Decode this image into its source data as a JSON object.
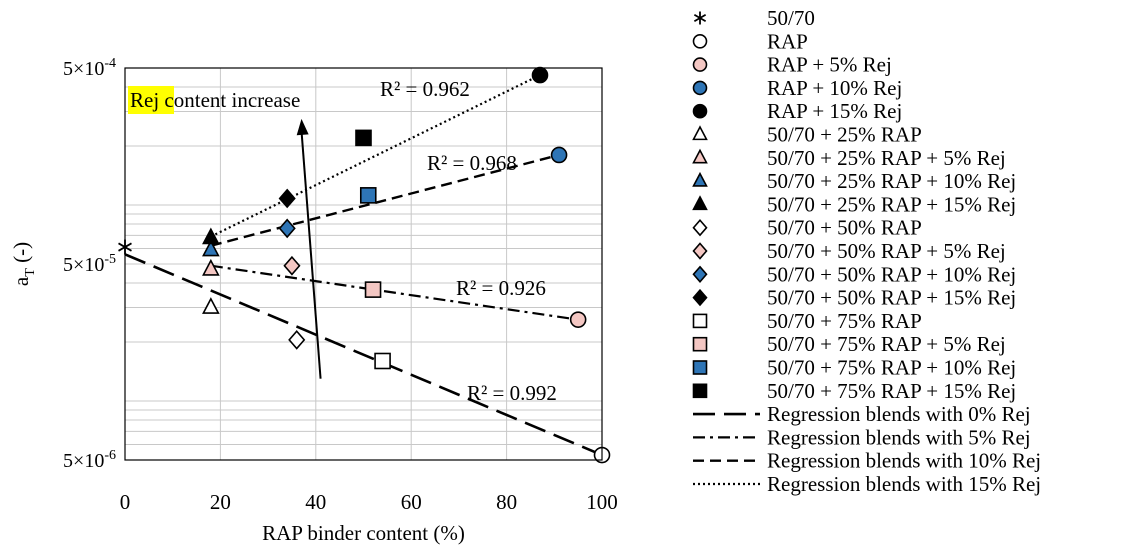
{
  "chart_data": {
    "type": "scatter",
    "title": "",
    "xlabel": "RAP binder content (%)",
    "ylabel_main": "a",
    "ylabel_sub": "T",
    "ylabel_suffix": " (-)",
    "x_range": [
      0,
      100
    ],
    "y_range": [
      5e-06,
      0.0005
    ],
    "y_scale": "log",
    "grid": true,
    "legend_position": "right",
    "x_ticks": [
      {
        "value": 0,
        "label": "0"
      },
      {
        "value": 20,
        "label": "20"
      },
      {
        "value": 40,
        "label": "40"
      },
      {
        "value": 60,
        "label": "60"
      },
      {
        "value": 80,
        "label": "80"
      },
      {
        "value": 100,
        "label": "100"
      }
    ],
    "y_ticks": [
      {
        "value": 5e-06,
        "mantissa": "5×10",
        "exponent": "-6"
      },
      {
        "value": 5e-05,
        "mantissa": "5×10",
        "exponent": "-5"
      },
      {
        "value": 0.0005,
        "mantissa": "5×10",
        "exponent": "-4"
      }
    ],
    "series": [
      {
        "name": "50/70",
        "marker": "asterisk",
        "fill": "none",
        "points": [
          [
            0,
            6.1e-05
          ]
        ]
      },
      {
        "name": "RAP",
        "marker": "circle",
        "fill": "#ffffff",
        "points": [
          [
            100,
            5.3e-06
          ]
        ]
      },
      {
        "name": "RAP + 5% Rej",
        "marker": "circle",
        "fill": "#f4c7c3",
        "points": [
          [
            95,
            2.6e-05
          ]
        ]
      },
      {
        "name": "RAP + 10% Rej",
        "marker": "circle",
        "fill": "#2e75b6",
        "points": [
          [
            91,
            0.00018
          ]
        ]
      },
      {
        "name": "RAP + 15% Rej",
        "marker": "circle",
        "fill": "#000000",
        "points": [
          [
            87,
            0.00046
          ]
        ]
      },
      {
        "name": "50/70 + 25% RAP",
        "marker": "triangle",
        "fill": "#ffffff",
        "points": [
          [
            18,
            3e-05
          ]
        ]
      },
      {
        "name": "50/70 + 25% RAP + 5% Rej",
        "marker": "triangle",
        "fill": "#f4c7c3",
        "points": [
          [
            18,
            4.7e-05
          ]
        ]
      },
      {
        "name": "50/70 + 25% RAP + 10% Rej",
        "marker": "triangle",
        "fill": "#2e75b6",
        "points": [
          [
            18,
            5.9e-05
          ]
        ]
      },
      {
        "name": "50/70 + 25% RAP + 15% Rej",
        "marker": "triangle",
        "fill": "#000000",
        "points": [
          [
            18,
            6.8e-05
          ]
        ]
      },
      {
        "name": "50/70 + 50% RAP",
        "marker": "diamond",
        "fill": "#ffffff",
        "points": [
          [
            36,
            2.05e-05
          ]
        ]
      },
      {
        "name": "50/70 + 50% RAP + 5% Rej",
        "marker": "diamond",
        "fill": "#f4c7c3",
        "points": [
          [
            35,
            4.9e-05
          ]
        ]
      },
      {
        "name": "50/70 + 50% RAP + 10% Rej",
        "marker": "diamond",
        "fill": "#2e75b6",
        "points": [
          [
            34,
            7.6e-05
          ]
        ]
      },
      {
        "name": "50/70 + 50% RAP + 15% Rej",
        "marker": "diamond",
        "fill": "#000000",
        "points": [
          [
            34,
            0.000108
          ]
        ]
      },
      {
        "name": "50/70 + 75% RAP",
        "marker": "square",
        "fill": "#ffffff",
        "points": [
          [
            54,
            1.6e-05
          ]
        ]
      },
      {
        "name": "50/70 + 75% RAP + 5% Rej",
        "marker": "square",
        "fill": "#f4c7c3",
        "points": [
          [
            52,
            3.7e-05
          ]
        ]
      },
      {
        "name": "50/70 + 75% RAP + 10% Rej",
        "marker": "square",
        "fill": "#2e75b6",
        "points": [
          [
            51,
            0.000112
          ]
        ]
      },
      {
        "name": "50/70 + 75% RAP + 15% Rej",
        "marker": "square",
        "fill": "#000000",
        "points": [
          [
            50,
            0.00022
          ]
        ]
      }
    ],
    "regressions": [
      {
        "name": "Regression blends with 0% Rej",
        "style": "longdash",
        "start": [
          0,
          5.6e-05
        ],
        "end": [
          100,
          5.3e-06
        ],
        "r2": "R² = 0.992"
      },
      {
        "name": "Regression blends with 5% Rej",
        "style": "dashdot",
        "start": [
          18,
          4.9e-05
        ],
        "end": [
          95,
          2.6e-05
        ],
        "r2": "R² = 0.926"
      },
      {
        "name": "Regression blends with 10% Rej",
        "style": "dash",
        "start": [
          18,
          6.2e-05
        ],
        "end": [
          91,
          0.00018
        ],
        "r2": "R² = 0.968"
      },
      {
        "name": "Regression blends with 15% Rej",
        "style": "dot",
        "start": [
          18,
          6.9e-05
        ],
        "end": [
          87,
          0.00046
        ],
        "r2": "R² = 0.962"
      }
    ],
    "annotation": {
      "highlight": "Rej",
      "text": " content increase",
      "highlight_color": "#ffff00",
      "arrow_from": [
        41,
        1.3e-05
      ],
      "arrow_to": [
        37,
        0.000275
      ]
    }
  }
}
